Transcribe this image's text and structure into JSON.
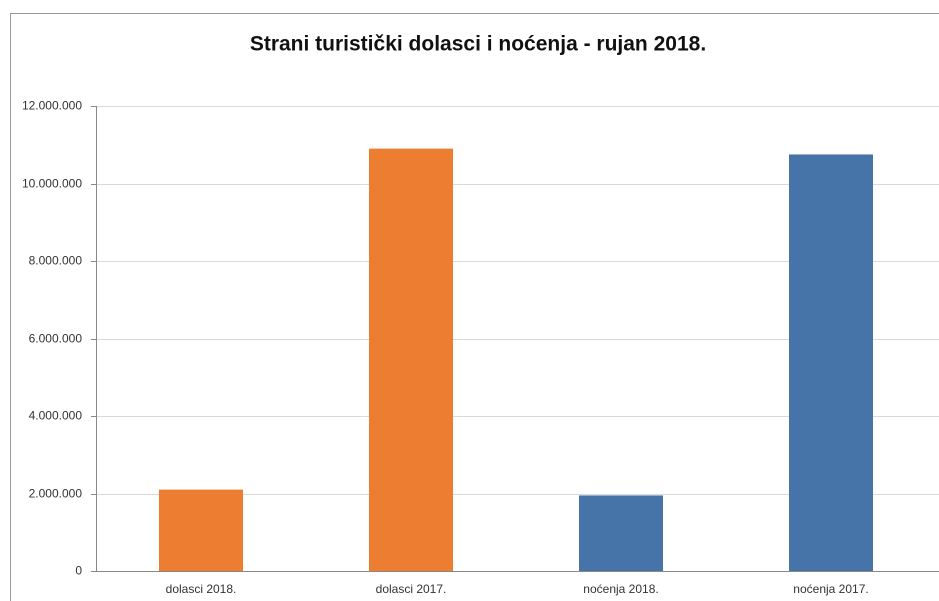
{
  "chart_data": {
    "type": "bar",
    "title": "Strani turistički dolasci i noćenja - rujan 2018.",
    "categories": [
      "dolasci 2018.",
      "dolasci 2017.",
      "noćenja 2018.",
      "noćenja 2017."
    ],
    "values": [
      2100000,
      10900000,
      1950000,
      10750000
    ],
    "colors": [
      "#ed7d31",
      "#ed7d31",
      "#4673a8",
      "#4673a8"
    ],
    "ylim": [
      0,
      12000000
    ],
    "yticks": [
      0,
      {
        "value": 2000000,
        "label": "2.000.000"
      },
      {
        "value": 4000000,
        "label": "4.000.000"
      },
      {
        "value": 6000000,
        "label": "6.000.000"
      },
      {
        "value": 8000000,
        "label": "8.000.000"
      },
      {
        "value": 10000000,
        "label": "10.000.000"
      },
      {
        "value": 12000000,
        "label": "12.000.000"
      }
    ],
    "grid": true
  }
}
